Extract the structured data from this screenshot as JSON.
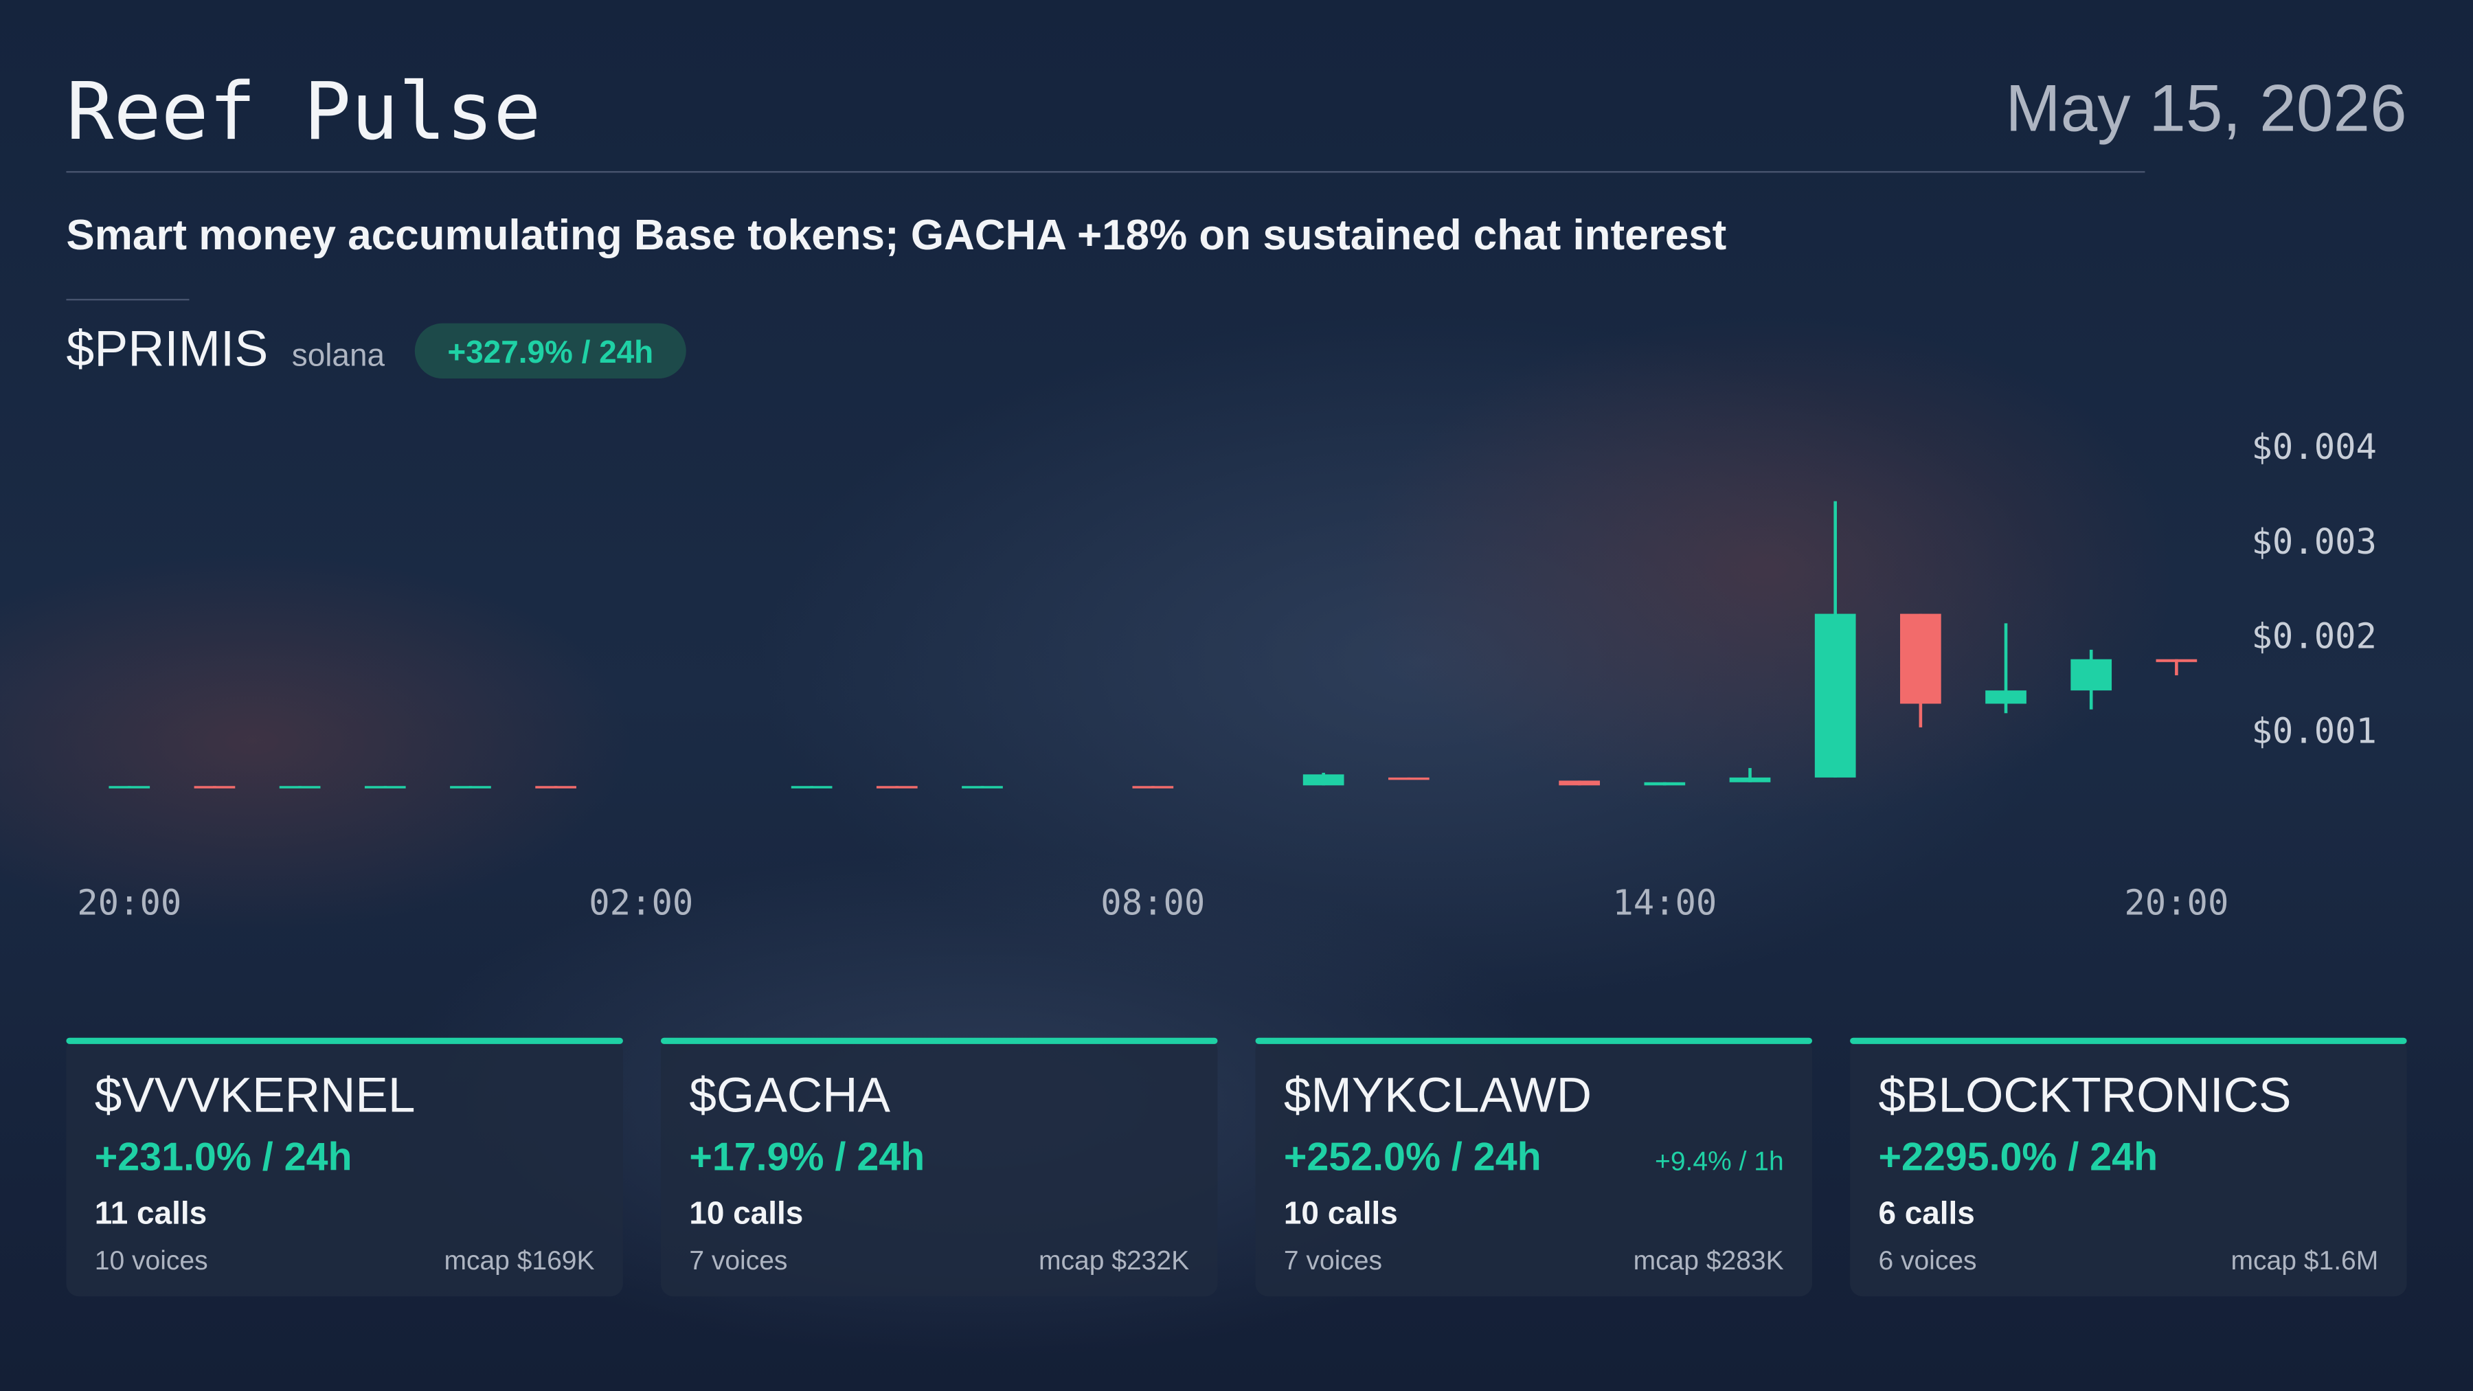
{
  "header": {
    "title": "Reef Pulse",
    "date": "May 15, 2026"
  },
  "headline": "Smart money accumulating Base tokens; GACHA +18% on sustained chat interest",
  "chart_data": {
    "type": "candlestick",
    "title": "$PRIMIS",
    "subtitle": "solana",
    "badge": "+327.9% / 24h",
    "categories": [
      "20:00",
      null,
      null,
      null,
      null,
      null,
      "02:00",
      null,
      null,
      null,
      null,
      null,
      "08:00",
      null,
      null,
      null,
      null,
      null,
      "14:00",
      null,
      null,
      null,
      null,
      null,
      "20:00"
    ],
    "open": [
      0.0004,
      0.00041,
      0.0004,
      0.0004,
      0.0004,
      0.00041,
      null,
      null,
      0.0004,
      0.00041,
      0.0004,
      null,
      0.00041,
      null,
      0.000417,
      0.0005,
      null,
      0.000467,
      0.000417,
      0.00045,
      0.0005,
      0.00223,
      0.00128,
      0.00142,
      0.00175
    ],
    "high": [
      0.00041,
      0.00041,
      0.00041,
      0.00041,
      0.00041,
      0.00041,
      null,
      null,
      0.00041,
      0.00041,
      0.00041,
      null,
      0.00041,
      null,
      0.00055,
      0.0005,
      null,
      0.000467,
      0.00045,
      0.0006,
      0.00342,
      0.00223,
      0.00213,
      0.00185,
      0.00175
    ],
    "low": [
      0.0004,
      0.0004,
      0.0004,
      0.0004,
      0.0004,
      0.0004,
      null,
      null,
      0.0004,
      0.0004,
      0.0004,
      null,
      0.0004,
      null,
      0.000417,
      0.00048,
      null,
      0.000417,
      0.000417,
      0.00045,
      0.0005,
      0.00103,
      0.00118,
      0.00122,
      0.00158
    ],
    "close": [
      0.00041,
      0.0004,
      0.00041,
      0.00041,
      0.00041,
      0.0004,
      null,
      null,
      0.00041,
      0.0004,
      0.00041,
      null,
      0.0004,
      null,
      0.000533,
      0.000483,
      null,
      0.000417,
      0.00045,
      0.0005,
      0.00223,
      0.00128,
      0.00142,
      0.00175,
      0.00172
    ],
    "ylim": [
      0,
      0.0045
    ],
    "yticks": [
      {
        "value": 0.001,
        "label": "$0.001"
      },
      {
        "value": 0.002,
        "label": "$0.002"
      },
      {
        "value": 0.003,
        "label": "$0.003"
      },
      {
        "value": 0.004,
        "label": "$0.004"
      }
    ],
    "up_color": "#1fd1a5",
    "down_color": "#f26b6b"
  },
  "cards": [
    {
      "ticker": "$VVVKERNEL",
      "change": "+231.0% / 24h",
      "calls": "11 calls",
      "voices": "10 voices",
      "mcap": "mcap $169K"
    },
    {
      "ticker": "$GACHA",
      "change": "+17.9% / 24h",
      "calls": "10 calls",
      "voices": "7 voices",
      "mcap": "mcap $232K"
    },
    {
      "ticker": "$MYKCLAWD",
      "change": "+252.0% / 24h",
      "change_1h": "+9.4% / 1h",
      "calls": "10 calls",
      "voices": "7 voices",
      "mcap": "mcap $283K"
    },
    {
      "ticker": "$BLOCKTRONICS",
      "change": "+2295.0% / 24h",
      "calls": "6 calls",
      "voices": "6 voices",
      "mcap": "mcap $1.6M"
    }
  ]
}
